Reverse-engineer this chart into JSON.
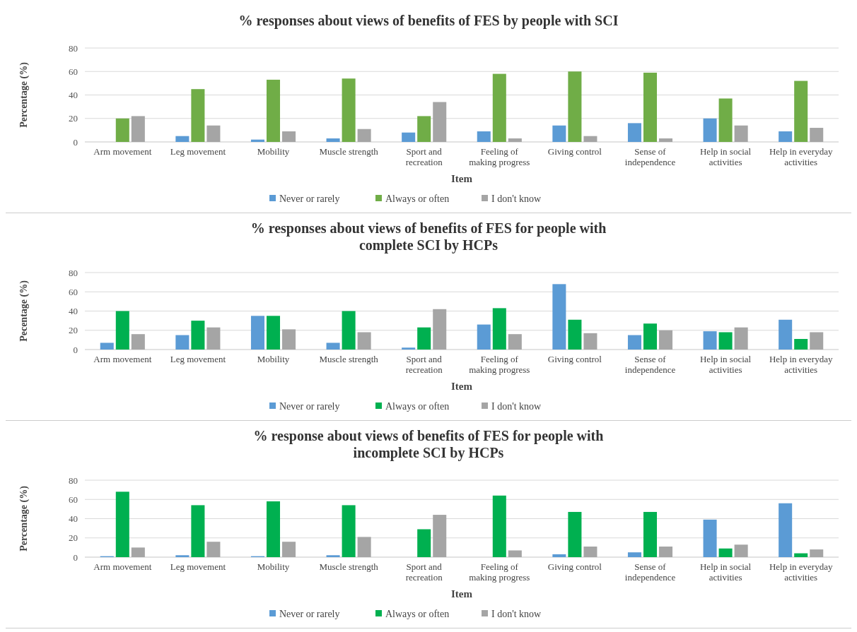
{
  "chart_data": [
    {
      "type": "bar",
      "title": "% responses about views of benefits of FES by people with SCI",
      "xlabel": "Item",
      "ylabel": "Percentage (%)",
      "categories": [
        "Arm movement",
        "Leg movement",
        "Mobility",
        "Muscle strength",
        "Sport and recreation",
        "Feeling of making progress",
        "Giving control",
        "Sense of independence",
        "Help in social activities",
        "Help in everyday activities"
      ],
      "series": [
        {
          "name": "Never or rarely",
          "color": "#5b9bd5",
          "values": [
            0,
            5,
            2,
            3,
            8,
            9,
            14,
            16,
            20,
            9
          ]
        },
        {
          "name": "Always or often",
          "color": "#70ad47",
          "values": [
            20,
            45,
            53,
            54,
            22,
            58,
            60,
            59,
            37,
            52
          ]
        },
        {
          "name": "I don't know",
          "color": "#a5a5a5",
          "values": [
            22,
            14,
            9,
            11,
            34,
            3,
            5,
            3,
            14,
            12
          ]
        }
      ],
      "ylim": [
        0,
        80
      ],
      "yticks": [
        0,
        20,
        40,
        60,
        80
      ],
      "grid": "y",
      "legend": "bottom"
    },
    {
      "type": "bar",
      "title": "% responses about views of benefits of FES for people with complete SCI by HCPs",
      "xlabel": "Item",
      "ylabel": "Pecentage (%)",
      "categories": [
        "Arm movement",
        "Leg movement",
        "Mobility",
        "Muscle strength",
        "Sport and recreation",
        "Feeling of making progress",
        "Giving control",
        "Sense of independence",
        "Help in social activities",
        "Help in everyday activities"
      ],
      "series": [
        {
          "name": "Never or rarely",
          "color": "#5b9bd5",
          "values": [
            7,
            15,
            35,
            7,
            2,
            26,
            68,
            15,
            19,
            31
          ]
        },
        {
          "name": "Always or often",
          "color": "#00b050",
          "values": [
            40,
            30,
            35,
            40,
            23,
            43,
            31,
            27,
            18,
            11
          ]
        },
        {
          "name": "I don't know",
          "color": "#a5a5a5",
          "values": [
            16,
            23,
            21,
            18,
            42,
            16,
            17,
            20,
            23,
            18
          ]
        }
      ],
      "ylim": [
        0,
        80
      ],
      "yticks": [
        0,
        20,
        40,
        60,
        80
      ],
      "grid": "y",
      "legend": "bottom"
    },
    {
      "type": "bar",
      "title": "% response about views of benefits of FES for people with incomplete SCI by HCPs",
      "xlabel": "Item",
      "ylabel": "Percentage (%)",
      "categories": [
        "Arm movement",
        "Leg movement",
        "Mobility",
        "Muscle strength",
        "Sport and recreation",
        "Feeling of making progress",
        "Giving control",
        "Sense of independence",
        "Help in social activities",
        "Help in everyday activities"
      ],
      "series": [
        {
          "name": "Never or rarely",
          "color": "#5b9bd5",
          "values": [
            1,
            2,
            1,
            2,
            0,
            0,
            3,
            5,
            39,
            56
          ]
        },
        {
          "name": "Always or often",
          "color": "#00b050",
          "values": [
            68,
            54,
            58,
            54,
            29,
            64,
            47,
            47,
            9,
            4
          ]
        },
        {
          "name": "I don't know",
          "color": "#a5a5a5",
          "values": [
            10,
            16,
            16,
            21,
            44,
            7,
            11,
            11,
            13,
            8
          ]
        }
      ],
      "ylim": [
        0,
        80
      ],
      "yticks": [
        0,
        20,
        40,
        60,
        80
      ],
      "grid": "y",
      "legend": "bottom"
    }
  ]
}
